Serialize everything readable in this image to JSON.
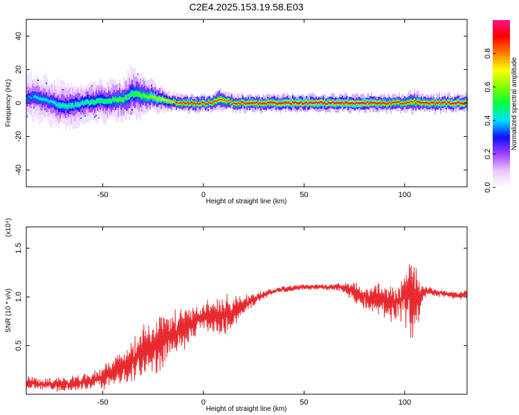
{
  "title": "C2E4.2025.153.19.58.E03",
  "chart_data": [
    {
      "type": "heatmap",
      "name": "spectrogram",
      "xlabel": "Height of straight line (km)",
      "ylabel": "Frequency (Hz)",
      "xlim": [
        -88,
        131
      ],
      "ylim": [
        -50,
        50
      ],
      "xticks": [
        -50,
        0,
        50,
        100
      ],
      "yticks": [
        -40,
        -20,
        0,
        20,
        40
      ],
      "colorbar": {
        "label": "Normalized spectral amplitude",
        "range": [
          0,
          1
        ],
        "ticks": [
          "0.0",
          "0.2",
          "0.4",
          "0.6",
          "0.8"
        ],
        "colors": [
          "#ffffff",
          "#e8c8ff",
          "#a040ff",
          "#1010ff",
          "#00e0ff",
          "#00ff40",
          "#80ff00",
          "#ffff00",
          "#ff8000",
          "#ff0000",
          "#ff1080"
        ]
      },
      "ridge": {
        "x": [
          -88,
          -84,
          -80,
          -76,
          -72,
          -68,
          -64,
          -60,
          -56,
          -52,
          -48,
          -44,
          -40,
          -36,
          -32,
          -28,
          -24,
          -20,
          -16,
          -12,
          -8,
          -4,
          0,
          4,
          8,
          12,
          16,
          20,
          30,
          40,
          60,
          80,
          100,
          104,
          108,
          131
        ],
        "freq": [
          3,
          4,
          2,
          1,
          -1,
          -2,
          -1,
          0,
          1,
          1,
          1,
          2,
          2,
          6,
          5,
          4,
          3,
          2,
          1,
          0,
          0,
          0,
          0,
          0,
          2,
          1,
          0,
          0,
          0,
          0,
          0,
          0,
          0,
          1,
          0,
          0
        ],
        "amplitude": [
          0.35,
          0.4,
          0.4,
          0.4,
          0.45,
          0.45,
          0.45,
          0.45,
          0.5,
          0.5,
          0.5,
          0.55,
          0.55,
          0.5,
          0.55,
          0.6,
          0.65,
          0.7,
          0.8,
          0.9,
          0.95,
          0.95,
          0.95,
          0.9,
          0.85,
          0.85,
          0.9,
          0.95,
          0.95,
          1.0,
          1.0,
          1.0,
          0.9,
          0.85,
          0.95,
          1.0
        ],
        "spread_hz": [
          8,
          8,
          8,
          8,
          8,
          8,
          8,
          7,
          7,
          7,
          7,
          7,
          7,
          9,
          8,
          6,
          5,
          4,
          3,
          3,
          3,
          3,
          3,
          3,
          4,
          3,
          3,
          3,
          3,
          3,
          3,
          3,
          3,
          4,
          3,
          3
        ]
      }
    },
    {
      "type": "line",
      "name": "snr",
      "xlabel": "Height of straight line (km)",
      "ylabel": "SNR (10 * v/v)",
      "yscale_label": "(x10⁴)",
      "xlim": [
        -88,
        131
      ],
      "ylim": [
        0,
        1.72
      ],
      "xticks": [
        -50,
        0,
        50,
        100
      ],
      "yticks": [
        0.5,
        1.0,
        1.5
      ],
      "ytick_labels": [
        "0.5",
        "1.0",
        "1.5"
      ],
      "color": "#e8292e",
      "envelope": {
        "x": [
          -88,
          -80,
          -70,
          -60,
          -52,
          -45,
          -38,
          -30,
          -25,
          -20,
          -15,
          -10,
          -5,
          0,
          5,
          10,
          15,
          20,
          25,
          30,
          35,
          40,
          50,
          60,
          70,
          75,
          80,
          85,
          90,
          95,
          100,
          102,
          104,
          106,
          108,
          110,
          115,
          120,
          125,
          131
        ],
        "mean": [
          0.12,
          0.1,
          0.1,
          0.12,
          0.15,
          0.22,
          0.32,
          0.42,
          0.5,
          0.55,
          0.62,
          0.68,
          0.74,
          0.78,
          0.82,
          0.8,
          0.85,
          0.92,
          0.98,
          1.02,
          1.06,
          1.08,
          1.1,
          1.1,
          1.1,
          1.05,
          1.0,
          0.98,
          0.95,
          0.95,
          1.0,
          1.05,
          1.0,
          0.95,
          1.0,
          1.05,
          1.05,
          1.03,
          1.02,
          1.02
        ],
        "noise": [
          0.06,
          0.06,
          0.07,
          0.08,
          0.1,
          0.14,
          0.18,
          0.28,
          0.3,
          0.26,
          0.22,
          0.22,
          0.18,
          0.14,
          0.16,
          0.22,
          0.14,
          0.1,
          0.06,
          0.04,
          0.03,
          0.03,
          0.03,
          0.03,
          0.05,
          0.1,
          0.14,
          0.16,
          0.16,
          0.18,
          0.28,
          0.36,
          0.5,
          0.3,
          0.14,
          0.05,
          0.04,
          0.04,
          0.04,
          0.04
        ]
      }
    }
  ]
}
